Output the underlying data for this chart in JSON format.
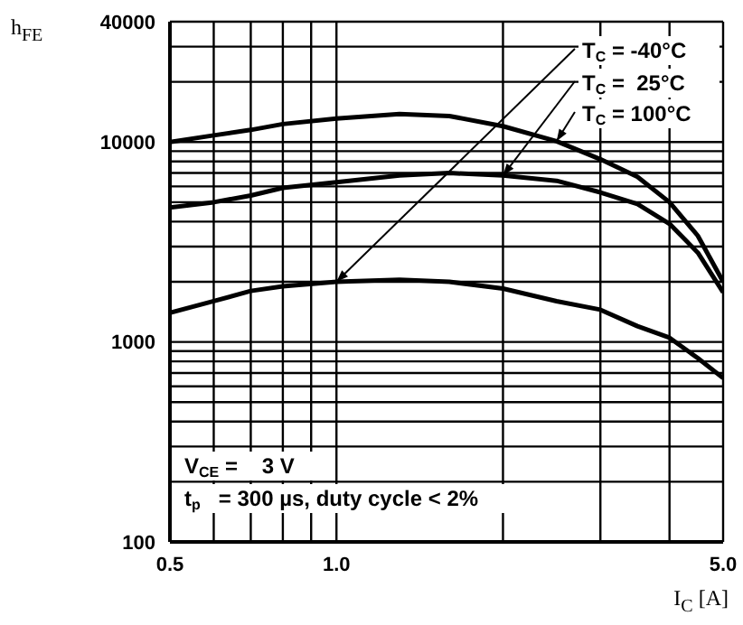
{
  "chart_data": {
    "type": "line",
    "ylabel": "h$_{FE}$",
    "xlabel": "I$_{C}$ [A]",
    "x": [
      0.5,
      0.6,
      0.7,
      0.8,
      1.0,
      1.3,
      1.6,
      2.0,
      2.5,
      3.0,
      3.5,
      4.0,
      4.5,
      5.0
    ],
    "series": [
      {
        "name": "T$_{C}$ = -40°C",
        "color": "#000000",
        "values": [
          1400,
          1600,
          1800,
          1900,
          2000,
          2050,
          2000,
          1850,
          1600,
          1450,
          1200,
          1050,
          830,
          660
        ]
      },
      {
        "name": "T$_{C}$ =  25°C",
        "color": "#000000",
        "values": [
          4700,
          5000,
          5400,
          5900,
          6300,
          6800,
          7000,
          6800,
          6400,
          5600,
          4900,
          3900,
          2800,
          1770
        ]
      },
      {
        "name": "T$_{C}$ = 100°C",
        "color": "#000000",
        "values": [
          10000,
          10800,
          11500,
          12300,
          13100,
          13800,
          13500,
          12000,
          10100,
          8200,
          6700,
          5000,
          3400,
          2000
        ]
      }
    ],
    "log": "xy",
    "grid": true,
    "xlim": [
      0.5,
      5.0
    ],
    "ylim": [
      100,
      40000
    ],
    "xticks": [
      {
        "value": 0.5,
        "label": "0.5"
      },
      {
        "value": 0.6,
        "label": null
      },
      {
        "value": 0.7,
        "label": null
      },
      {
        "value": 0.8,
        "label": null
      },
      {
        "value": 0.9,
        "label": null
      },
      {
        "value": 1.0,
        "label": "1.0"
      },
      {
        "value": 2.0,
        "label": null
      },
      {
        "value": 3.0,
        "label": null
      },
      {
        "value": 4.0,
        "label": null
      },
      {
        "value": 5.0,
        "label": "5.0"
      }
    ],
    "yticks": [
      100,
      {
        "value": 200,
        "label": null
      },
      {
        "value": 300,
        "label": null
      },
      {
        "value": 400,
        "label": null
      },
      {
        "value": 500,
        "label": null
      },
      {
        "value": 600,
        "label": null
      },
      {
        "value": 700,
        "label": null
      },
      {
        "value": 800,
        "label": null
      },
      {
        "value": 900,
        "label": null
      },
      1000,
      {
        "value": 2000,
        "label": null
      },
      {
        "value": 3000,
        "label": null
      },
      {
        "value": 4000,
        "label": null
      },
      {
        "value": 5000,
        "label": null
      },
      {
        "value": 6000,
        "label": null
      },
      {
        "value": 7000,
        "label": null
      },
      {
        "value": 8000,
        "label": null
      },
      {
        "value": 9000,
        "label": null
      },
      10000,
      {
        "value": 20000,
        "label": null
      },
      {
        "value": 30000,
        "label": null
      },
      40000
    ],
    "annotations": [
      "V$_{CE}$ =    3 V",
      "t$_{p}$   = 300 µs, duty cycle < 2%"
    ]
  }
}
